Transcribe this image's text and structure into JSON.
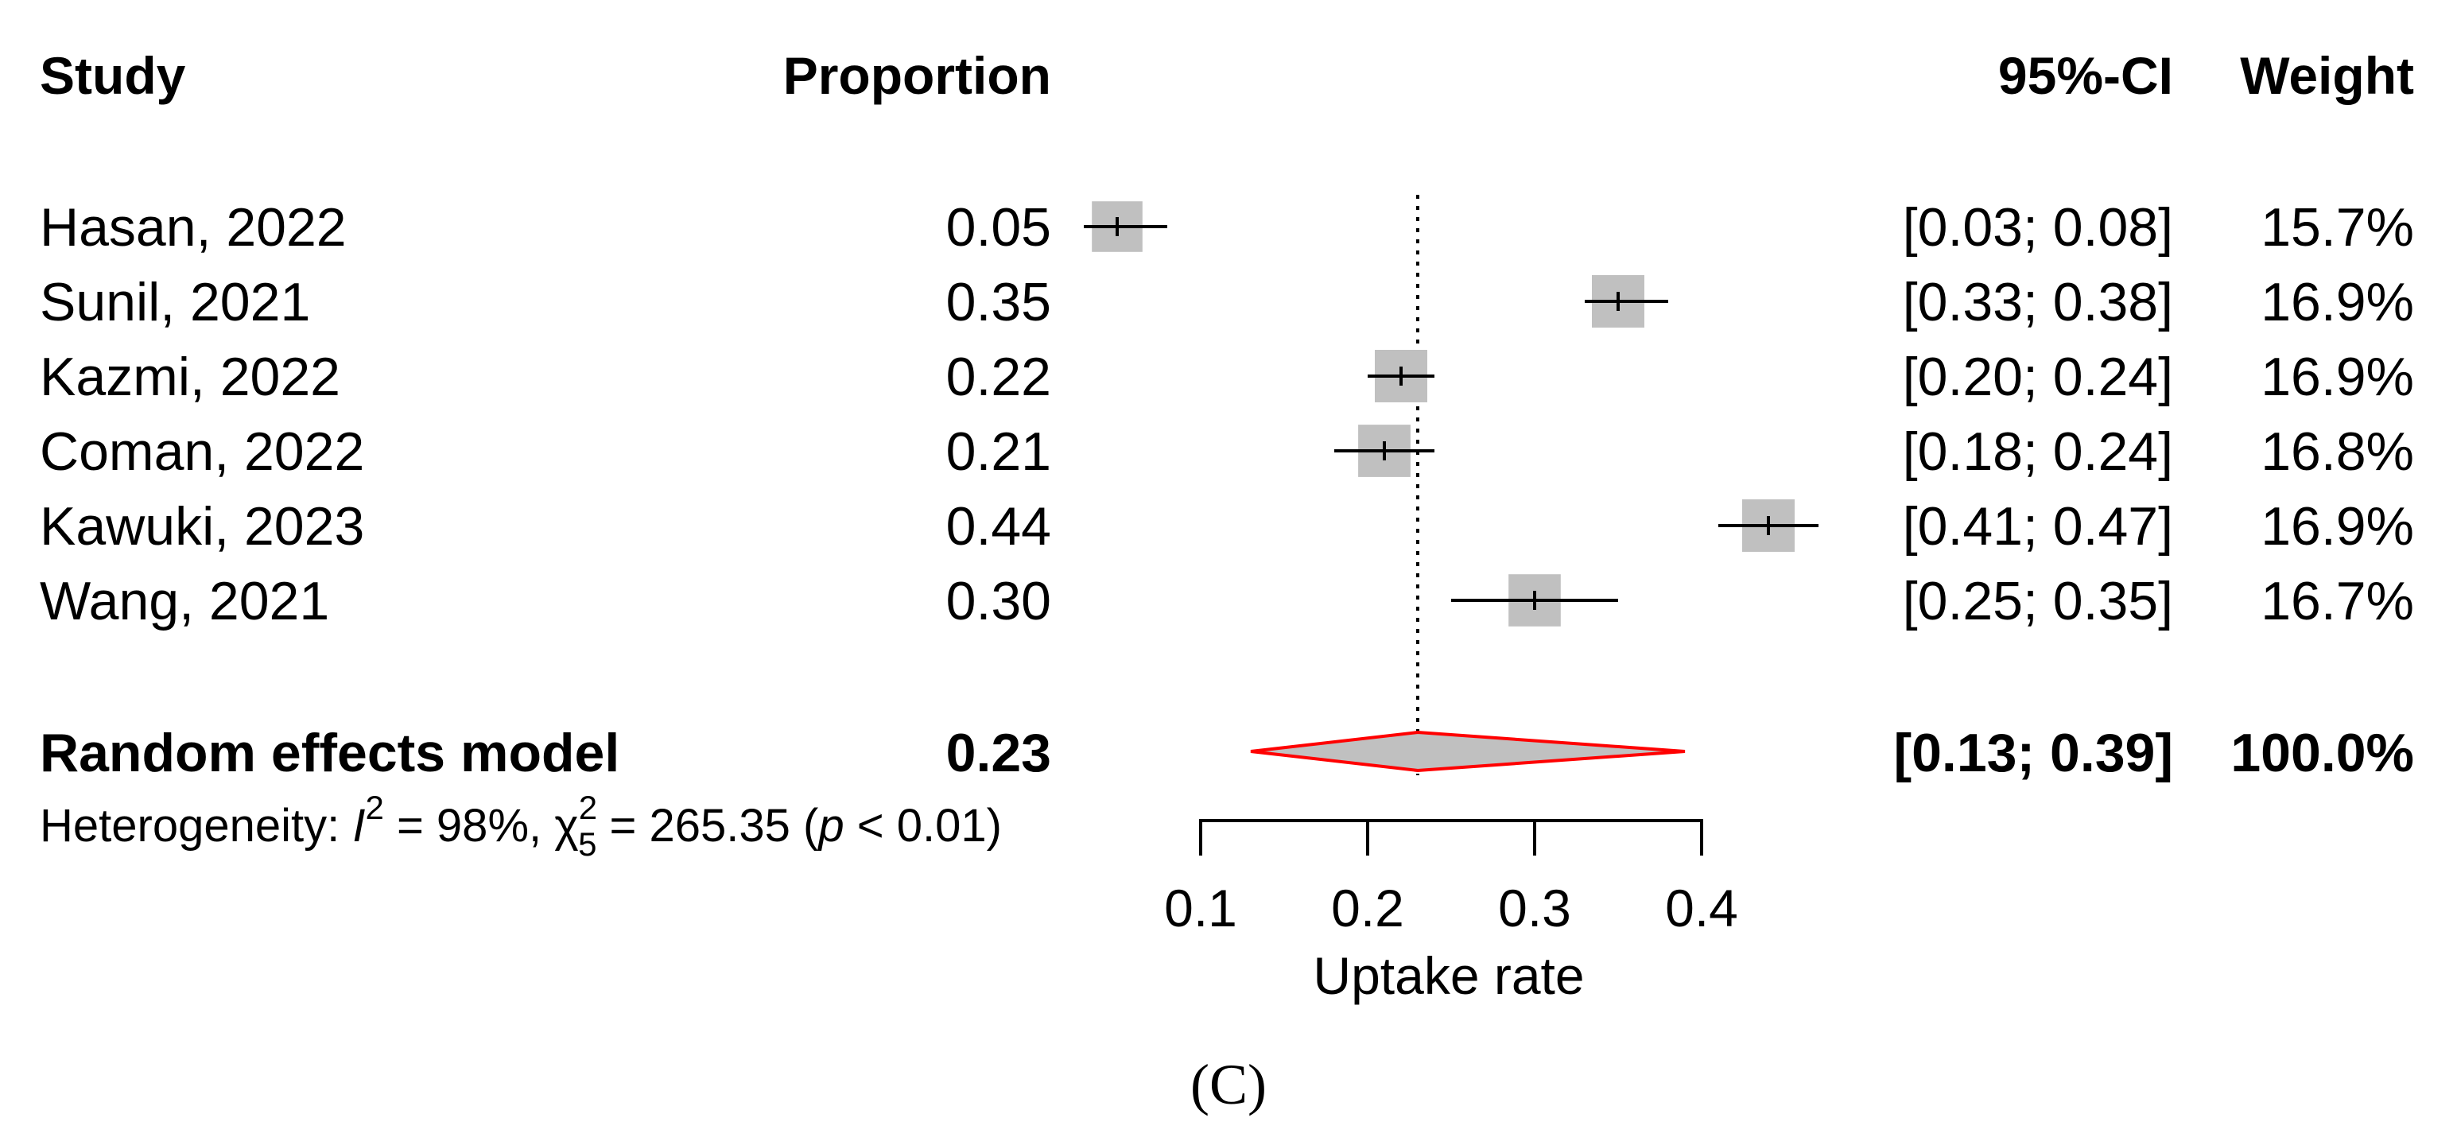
{
  "chart_data": {
    "type": "forest",
    "columns": {
      "study": "Study",
      "proportion": "Proportion",
      "ci": "95%-CI",
      "weight": "Weight"
    },
    "studies": [
      {
        "name": "Hasan, 2022",
        "proportion_label": "0.05",
        "estimate": 0.05,
        "lower": 0.03,
        "upper": 0.08,
        "ci_label": "[0.03; 0.08]",
        "weight_label": "15.7%",
        "weight": 15.7
      },
      {
        "name": "Sunil, 2021",
        "proportion_label": "0.35",
        "estimate": 0.35,
        "lower": 0.33,
        "upper": 0.38,
        "ci_label": "[0.33; 0.38]",
        "weight_label": "16.9%",
        "weight": 16.9
      },
      {
        "name": "Kazmi, 2022",
        "proportion_label": "0.22",
        "estimate": 0.22,
        "lower": 0.2,
        "upper": 0.24,
        "ci_label": "[0.20; 0.24]",
        "weight_label": "16.9%",
        "weight": 16.9
      },
      {
        "name": "Coman, 2022",
        "proportion_label": "0.21",
        "estimate": 0.21,
        "lower": 0.18,
        "upper": 0.24,
        "ci_label": "[0.18; 0.24]",
        "weight_label": "16.8%",
        "weight": 16.8
      },
      {
        "name": "Kawuki, 2023",
        "proportion_label": "0.44",
        "estimate": 0.44,
        "lower": 0.41,
        "upper": 0.47,
        "ci_label": "[0.41; 0.47]",
        "weight_label": "16.9%",
        "weight": 16.9
      },
      {
        "name": "Wang, 2021",
        "proportion_label": "0.30",
        "estimate": 0.3,
        "lower": 0.25,
        "upper": 0.35,
        "ci_label": "[0.25; 0.35]",
        "weight_label": "16.7%",
        "weight": 16.7
      }
    ],
    "pooled": {
      "name": "Random effects model",
      "proportion_label": "0.23",
      "estimate": 0.23,
      "lower": 0.13,
      "upper": 0.39,
      "ci_label": "[0.13; 0.39]",
      "weight_label": "100.0%"
    },
    "heterogeneity": {
      "prefix": "Heterogeneity: ",
      "i2_symbol": "I",
      "i2_sup": "2",
      "i2_value": " = 98%, ",
      "chi_symbol": "χ",
      "chi_sup": "2",
      "chi_sub": "5",
      "chi_value": " = 265.35 (",
      "p_symbol": "p",
      "p_value": " < 0.01)"
    },
    "xaxis": {
      "label": "Uptake rate",
      "ticks": [
        0.1,
        0.2,
        0.3,
        0.4
      ],
      "tick_labels": [
        "0.1",
        "0.2",
        "0.3",
        "0.4"
      ],
      "range": [
        0.1,
        0.4
      ]
    },
    "reference_line": 0.23,
    "panel_label": "(C)"
  },
  "colors": {
    "box": "#c0c0c0",
    "diamond_fill": "#c0c0c0",
    "diamond_stroke": "#ff0000",
    "line": "#000000"
  }
}
